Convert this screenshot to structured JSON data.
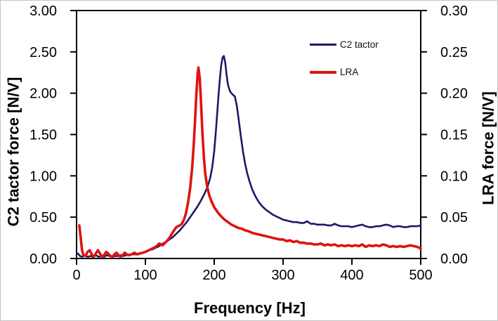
{
  "figure": {
    "background": "#ffffff",
    "frame_color": "#000000"
  },
  "chart_data": {
    "type": "line",
    "title": "",
    "xlabel": "Frequency [Hz]",
    "ylabel_left": "C2 tactor force [N/V]",
    "ylabel_right": "LRA force [N/V]",
    "x_range": [
      0,
      500
    ],
    "y_left_range": [
      0,
      3.0
    ],
    "y_right_range": [
      0,
      0.3
    ],
    "x_ticks": [
      0,
      100,
      200,
      300,
      400,
      500
    ],
    "x_tick_labels": [
      "0",
      "100",
      "200",
      "300",
      "400",
      "500"
    ],
    "y_left_ticks": [
      0,
      0.5,
      1.0,
      1.5,
      2.0,
      2.5,
      3.0
    ],
    "y_left_tick_labels": [
      "0.00",
      "0.50",
      "1.00",
      "1.50",
      "2.00",
      "2.50",
      "3.00"
    ],
    "y_right_ticks": [
      0,
      0.05,
      0.1,
      0.15,
      0.2,
      0.25,
      0.3
    ],
    "y_right_tick_labels": [
      "0.00",
      "0.05",
      "0.10",
      "0.15",
      "0.20",
      "0.25",
      "0.30"
    ],
    "grid": false,
    "legend_position": "upper-right-inside",
    "series": [
      {
        "name": "C2 tactor",
        "axis": "left",
        "color": "#1a1a6b",
        "line_width": 2.6,
        "points": [
          [
            2,
            0.06
          ],
          [
            5,
            0.03
          ],
          [
            8,
            0.02
          ],
          [
            12,
            0.04
          ],
          [
            16,
            0.02
          ],
          [
            20,
            0.03
          ],
          [
            24,
            0.02
          ],
          [
            28,
            0.04
          ],
          [
            32,
            0.02
          ],
          [
            36,
            0.03
          ],
          [
            40,
            0.02
          ],
          [
            44,
            0.04
          ],
          [
            48,
            0.03
          ],
          [
            52,
            0.02
          ],
          [
            56,
            0.03
          ],
          [
            60,
            0.03
          ],
          [
            64,
            0.04
          ],
          [
            68,
            0.03
          ],
          [
            72,
            0.04
          ],
          [
            76,
            0.04
          ],
          [
            80,
            0.05
          ],
          [
            85,
            0.05
          ],
          [
            90,
            0.06
          ],
          [
            95,
            0.07
          ],
          [
            100,
            0.08
          ],
          [
            105,
            0.1
          ],
          [
            110,
            0.11
          ],
          [
            115,
            0.13
          ],
          [
            120,
            0.15
          ],
          [
            125,
            0.18
          ],
          [
            130,
            0.2
          ],
          [
            135,
            0.23
          ],
          [
            140,
            0.26
          ],
          [
            145,
            0.3
          ],
          [
            150,
            0.34
          ],
          [
            155,
            0.39
          ],
          [
            160,
            0.44
          ],
          [
            165,
            0.5
          ],
          [
            170,
            0.56
          ],
          [
            175,
            0.62
          ],
          [
            180,
            0.69
          ],
          [
            185,
            0.77
          ],
          [
            190,
            0.86
          ],
          [
            194,
            0.97
          ],
          [
            197,
            1.1
          ],
          [
            200,
            1.3
          ],
          [
            203,
            1.6
          ],
          [
            206,
            1.95
          ],
          [
            208,
            2.15
          ],
          [
            210,
            2.33
          ],
          [
            212,
            2.43
          ],
          [
            214,
            2.45
          ],
          [
            216,
            2.37
          ],
          [
            218,
            2.22
          ],
          [
            220,
            2.1
          ],
          [
            223,
            2.02
          ],
          [
            226,
            1.99
          ],
          [
            230,
            1.96
          ],
          [
            233,
            1.84
          ],
          [
            236,
            1.65
          ],
          [
            239,
            1.46
          ],
          [
            242,
            1.28
          ],
          [
            245,
            1.14
          ],
          [
            248,
            1.03
          ],
          [
            251,
            0.94
          ],
          [
            255,
            0.84
          ],
          [
            260,
            0.75
          ],
          [
            265,
            0.68
          ],
          [
            270,
            0.63
          ],
          [
            275,
            0.59
          ],
          [
            280,
            0.56
          ],
          [
            285,
            0.53
          ],
          [
            290,
            0.51
          ],
          [
            295,
            0.49
          ],
          [
            300,
            0.47
          ],
          [
            305,
            0.46
          ],
          [
            310,
            0.45
          ],
          [
            315,
            0.44
          ],
          [
            320,
            0.44
          ],
          [
            325,
            0.43
          ],
          [
            330,
            0.43
          ],
          [
            335,
            0.45
          ],
          [
            340,
            0.42
          ],
          [
            345,
            0.42
          ],
          [
            350,
            0.41
          ],
          [
            355,
            0.41
          ],
          [
            360,
            0.41
          ],
          [
            365,
            0.4
          ],
          [
            370,
            0.4
          ],
          [
            375,
            0.42
          ],
          [
            380,
            0.4
          ],
          [
            385,
            0.39
          ],
          [
            390,
            0.39
          ],
          [
            395,
            0.39
          ],
          [
            400,
            0.38
          ],
          [
            405,
            0.39
          ],
          [
            410,
            0.4
          ],
          [
            415,
            0.41
          ],
          [
            420,
            0.39
          ],
          [
            425,
            0.38
          ],
          [
            430,
            0.38
          ],
          [
            435,
            0.39
          ],
          [
            440,
            0.39
          ],
          [
            445,
            0.4
          ],
          [
            450,
            0.41
          ],
          [
            455,
            0.4
          ],
          [
            460,
            0.38
          ],
          [
            465,
            0.39
          ],
          [
            470,
            0.39
          ],
          [
            475,
            0.38
          ],
          [
            480,
            0.38
          ],
          [
            485,
            0.39
          ],
          [
            490,
            0.39
          ],
          [
            495,
            0.39
          ],
          [
            500,
            0.4
          ]
        ]
      },
      {
        "name": "LRA",
        "axis": "right",
        "color": "#de1310",
        "line_width": 3.6,
        "points": [
          [
            4,
            0.04
          ],
          [
            6,
            0.025
          ],
          [
            8,
            0.01
          ],
          [
            10,
            0.004
          ],
          [
            13,
            0.003
          ],
          [
            16,
            0.008
          ],
          [
            19,
            0.01
          ],
          [
            22,
            0.005
          ],
          [
            25,
            0.002
          ],
          [
            28,
            0.006
          ],
          [
            31,
            0.01
          ],
          [
            34,
            0.006
          ],
          [
            37,
            0.002
          ],
          [
            40,
            0.004
          ],
          [
            43,
            0.008
          ],
          [
            46,
            0.006
          ],
          [
            49,
            0.003
          ],
          [
            52,
            0.002
          ],
          [
            55,
            0.005
          ],
          [
            58,
            0.007
          ],
          [
            61,
            0.004
          ],
          [
            64,
            0.002
          ],
          [
            67,
            0.004
          ],
          [
            70,
            0.007
          ],
          [
            73,
            0.005
          ],
          [
            76,
            0.004
          ],
          [
            80,
            0.005
          ],
          [
            84,
            0.007
          ],
          [
            88,
            0.005
          ],
          [
            92,
            0.006
          ],
          [
            96,
            0.007
          ],
          [
            100,
            0.008
          ],
          [
            105,
            0.01
          ],
          [
            110,
            0.012
          ],
          [
            115,
            0.014
          ],
          [
            120,
            0.018
          ],
          [
            125,
            0.016
          ],
          [
            130,
            0.02
          ],
          [
            135,
            0.025
          ],
          [
            140,
            0.032
          ],
          [
            145,
            0.038
          ],
          [
            150,
            0.04
          ],
          [
            153,
            0.042
          ],
          [
            156,
            0.047
          ],
          [
            159,
            0.055
          ],
          [
            162,
            0.068
          ],
          [
            165,
            0.085
          ],
          [
            168,
            0.11
          ],
          [
            170,
            0.135
          ],
          [
            172,
            0.165
          ],
          [
            174,
            0.198
          ],
          [
            176,
            0.225
          ],
          [
            177,
            0.231
          ],
          [
            179,
            0.218
          ],
          [
            181,
            0.185
          ],
          [
            183,
            0.15
          ],
          [
            185,
            0.122
          ],
          [
            187,
            0.102
          ],
          [
            190,
            0.086
          ],
          [
            193,
            0.076
          ],
          [
            196,
            0.069
          ],
          [
            200,
            0.062
          ],
          [
            205,
            0.056
          ],
          [
            210,
            0.051
          ],
          [
            215,
            0.047
          ],
          [
            220,
            0.044
          ],
          [
            225,
            0.041
          ],
          [
            230,
            0.039
          ],
          [
            235,
            0.037
          ],
          [
            240,
            0.036
          ],
          [
            245,
            0.034
          ],
          [
            250,
            0.033
          ],
          [
            255,
            0.031
          ],
          [
            260,
            0.03
          ],
          [
            265,
            0.029
          ],
          [
            270,
            0.028
          ],
          [
            275,
            0.027
          ],
          [
            280,
            0.026
          ],
          [
            285,
            0.025
          ],
          [
            290,
            0.024
          ],
          [
            295,
            0.023
          ],
          [
            300,
            0.023
          ],
          [
            305,
            0.021
          ],
          [
            310,
            0.022
          ],
          [
            315,
            0.02
          ],
          [
            320,
            0.021
          ],
          [
            325,
            0.019
          ],
          [
            330,
            0.019
          ],
          [
            335,
            0.018
          ],
          [
            340,
            0.018
          ],
          [
            345,
            0.017
          ],
          [
            350,
            0.017
          ],
          [
            355,
            0.018
          ],
          [
            360,
            0.016
          ],
          [
            365,
            0.017
          ],
          [
            370,
            0.016
          ],
          [
            375,
            0.017
          ],
          [
            380,
            0.015
          ],
          [
            385,
            0.016
          ],
          [
            390,
            0.015
          ],
          [
            395,
            0.016
          ],
          [
            400,
            0.015
          ],
          [
            405,
            0.016
          ],
          [
            410,
            0.015
          ],
          [
            415,
            0.017
          ],
          [
            420,
            0.014
          ],
          [
            425,
            0.016
          ],
          [
            430,
            0.015
          ],
          [
            435,
            0.016
          ],
          [
            440,
            0.015
          ],
          [
            445,
            0.017
          ],
          [
            450,
            0.016
          ],
          [
            455,
            0.014
          ],
          [
            460,
            0.015
          ],
          [
            465,
            0.014
          ],
          [
            470,
            0.015
          ],
          [
            475,
            0.014
          ],
          [
            480,
            0.015
          ],
          [
            485,
            0.016
          ],
          [
            490,
            0.015
          ],
          [
            495,
            0.014
          ],
          [
            500,
            0.012
          ]
        ]
      }
    ]
  }
}
